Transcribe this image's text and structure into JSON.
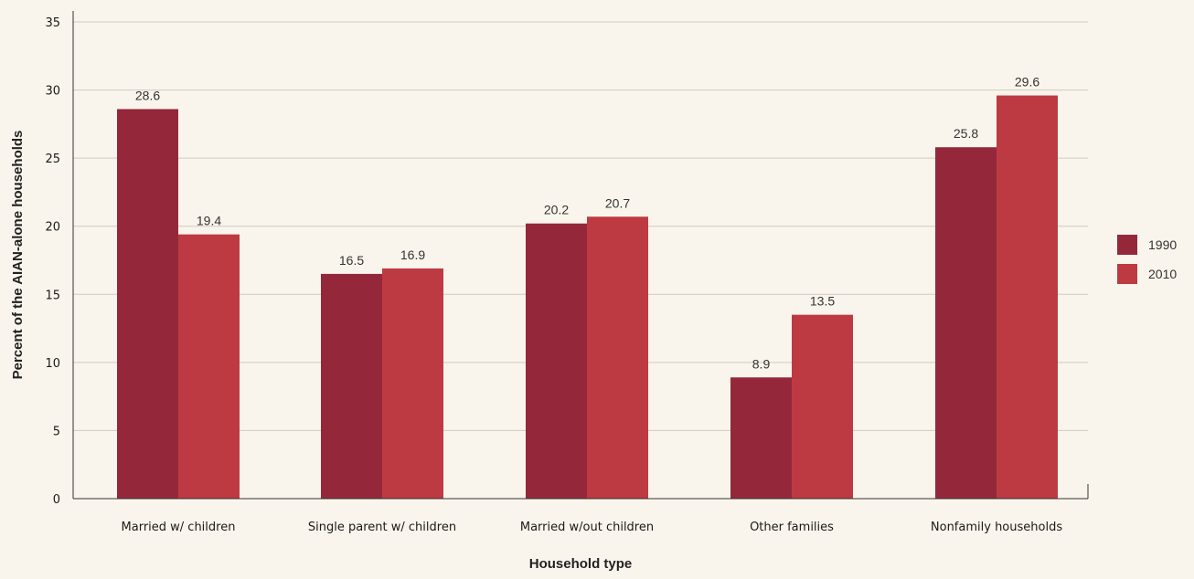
{
  "chart_data": {
    "type": "bar",
    "title": "",
    "xlabel": "Household type",
    "ylabel": "Percent of the AIAN-alone households",
    "categories": [
      "Married w/ children",
      "Single parent w/ children",
      "Married w/out children",
      "Other families",
      "Nonfamily households"
    ],
    "series": [
      {
        "name": "1990",
        "values": [
          28.6,
          16.5,
          20.2,
          8.9,
          25.8
        ],
        "color": "#94283a"
      },
      {
        "name": "2010",
        "values": [
          19.4,
          16.9,
          20.7,
          13.5,
          29.6
        ],
        "color": "#bd3a43"
      }
    ],
    "ylim": [
      0,
      35
    ],
    "yticks": [
      "0",
      "5",
      "10",
      "15",
      "20",
      "25",
      "30",
      "35"
    ],
    "grid": true,
    "legend_position": "right"
  }
}
